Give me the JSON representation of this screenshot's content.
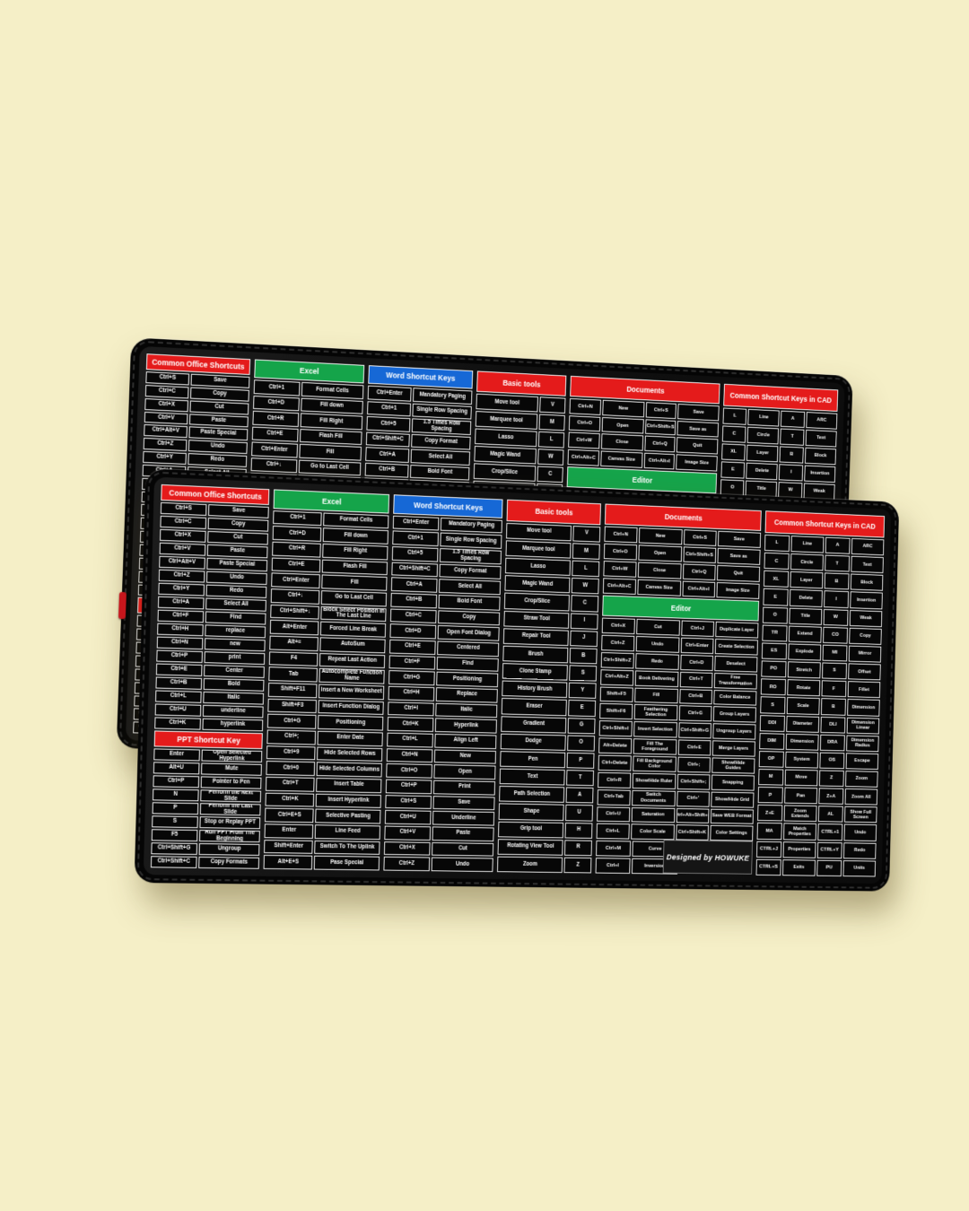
{
  "scene": {
    "background_color": "#f5efc7",
    "mat_color": "#101010",
    "badge_text": "Designed by HOWUKE"
  },
  "colors": {
    "red": "#e41b1b",
    "green": "#15a44a",
    "blue": "#1668d6"
  },
  "mat": {
    "columns": [
      {
        "id": "office",
        "flex": 1.48,
        "sections": [
          {
            "header": "Common Office Shortcuts",
            "color": "red",
            "layout": "kv",
            "rows": [
              [
                "Ctrl+S",
                "Save"
              ],
              [
                "Ctrl+C",
                "Copy"
              ],
              [
                "Ctrl+X",
                "Cut"
              ],
              [
                "Ctrl+V",
                "Paste"
              ],
              [
                "Ctrl+Alt+V",
                "Paste Special"
              ],
              [
                "Ctrl+Z",
                "Undo"
              ],
              [
                "Ctrl+Y",
                "Redo"
              ],
              [
                "Ctrl+A",
                "Select All"
              ],
              [
                "Ctrl+F",
                "Find"
              ],
              [
                "Ctrl+H",
                "replace"
              ],
              [
                "Ctrl+N",
                "new"
              ],
              [
                "Ctrl+P",
                "print"
              ],
              [
                "Ctrl+E",
                "Center"
              ],
              [
                "Ctrl+B",
                "Bold"
              ],
              [
                "Ctrl+L",
                "Italic"
              ],
              [
                "Ctrl+U",
                "underline"
              ],
              [
                "Ctrl+K",
                "hyperlink"
              ]
            ]
          },
          {
            "header": "PPT Shortcut Key",
            "color": "red",
            "layout": "kv",
            "rows": [
              [
                "Enter",
                "Open Selected Hyperlink"
              ],
              [
                "Alt+U",
                "Mute"
              ],
              [
                "Ctrl+P",
                "Pointer to Pen"
              ],
              [
                "N",
                "Perform the Next Slide"
              ],
              [
                "P",
                "Perform the Last Slide"
              ],
              [
                "S",
                "Stop or Replay PPT"
              ],
              [
                "F5",
                "Run PPT From The Beginning"
              ],
              [
                "Ctrl+Shift+G",
                "Ungroup"
              ],
              [
                "Ctrl+Shift+C",
                "Copy Formats"
              ]
            ]
          }
        ]
      },
      {
        "id": "excel",
        "flex": 1.6,
        "sections": [
          {
            "header": "Excel",
            "color": "green",
            "layout": "kv",
            "rows": [
              [
                "Ctrl+1",
                "Format Cells"
              ],
              [
                "Ctrl+D",
                "Fill down"
              ],
              [
                "Ctrl+R",
                "Fill Right"
              ],
              [
                "Ctrl+E",
                "Flash Fill"
              ],
              [
                "Ctrl+Enter",
                "Fill"
              ],
              [
                "Ctrl+↓",
                "Go to Last Cell"
              ],
              [
                "Ctrl+Shift+↓",
                "Block Select Position In The Last Line"
              ],
              [
                "Alt+Enter",
                "Forced Line Break"
              ],
              [
                "Alt+=",
                "AutoSum"
              ],
              [
                "F4",
                "Repeat Last Action"
              ],
              [
                "Tab",
                "Autocomplete Function Name"
              ],
              [
                "Shift+F11",
                "Insert a New Worksheet"
              ],
              [
                "Shift+F3",
                "Insert Function Dialog"
              ],
              [
                "Ctrl+G",
                "Positioning"
              ],
              [
                "Ctrl+;",
                "Enter Date"
              ],
              [
                "Ctrl+9",
                "Hide Selected Rows"
              ],
              [
                "Ctrl+0",
                "Hide Selected Columns"
              ],
              [
                "Ctrl+T",
                "Insert Table"
              ],
              [
                "Ctrl+K",
                "Insert Hyperlink"
              ],
              [
                "Ctrl+E+S",
                "Selective Pasting"
              ],
              [
                "Enter",
                "Line Feed"
              ],
              [
                "Shift+Enter",
                "Switch To The Uplink"
              ],
              [
                "Alt+E+S",
                "Pase Special"
              ]
            ]
          }
        ]
      },
      {
        "id": "word",
        "flex": 1.55,
        "sections": [
          {
            "header": "Word Shortcut Keys",
            "color": "blue",
            "layout": "kv",
            "rows": [
              [
                "Ctrl+Enter",
                "Mandatory Paging"
              ],
              [
                "Ctrl+1",
                "Single Row Spacing"
              ],
              [
                "Ctrl+5",
                "1.5 Times Row Spacing"
              ],
              [
                "Ctrl+Shift+C",
                "Copy Format"
              ],
              [
                "Ctrl+A",
                "Select All"
              ],
              [
                "Ctrl+B",
                "Bold Font"
              ],
              [
                "Ctrl+C",
                "Copy"
              ],
              [
                "Ctrl+D",
                "Open Font Dialog"
              ],
              [
                "Ctrl+E",
                "Centered"
              ],
              [
                "Ctrl+F",
                "Find"
              ],
              [
                "Ctrl+G",
                "Positioning"
              ],
              [
                "Ctrl+H",
                "Replace"
              ],
              [
                "Ctrl+I",
                "Italic"
              ],
              [
                "Ctrl+K",
                "Hyperlink"
              ],
              [
                "Ctrl+L",
                "Align Left"
              ],
              [
                "Ctrl+N",
                "New"
              ],
              [
                "Ctrl+O",
                "Open"
              ],
              [
                "Ctrl+P",
                "Print"
              ],
              [
                "Ctrl+S",
                "Save"
              ],
              [
                "Ctrl+U",
                "Underline"
              ],
              [
                "Ctrl+V",
                "Paste"
              ],
              [
                "Ctrl+X",
                "Cut"
              ],
              [
                "Ctrl+Z",
                "Undo"
              ]
            ]
          }
        ]
      },
      {
        "id": "basic-tools",
        "flex": 1.35,
        "sections": [
          {
            "header": "Basic tools",
            "color": "red",
            "layout": "vk",
            "rows": [
              [
                "Move tool",
                "V"
              ],
              [
                "Marquee tool",
                "M"
              ],
              [
                "Lasso",
                "L"
              ],
              [
                "Magic Wand",
                "W"
              ],
              [
                "Crop/Slice",
                "C"
              ],
              [
                "Straw Tool",
                "I"
              ],
              [
                "Repair Tool",
                "J"
              ],
              [
                "Brush",
                "B"
              ],
              [
                "Clone Stamp",
                "S"
              ],
              [
                "History Brush",
                "Y"
              ],
              [
                "Eraser",
                "E"
              ],
              [
                "Gradient",
                "G"
              ],
              [
                "Dodge",
                "O"
              ],
              [
                "Pen",
                "P"
              ],
              [
                "Text",
                "T"
              ],
              [
                "Path Selection",
                "A"
              ],
              [
                "Shape",
                "U"
              ],
              [
                "Grip tool",
                "H"
              ],
              [
                "Rotating View Tool",
                "R"
              ],
              [
                "Zoom",
                "Z"
              ]
            ]
          }
        ]
      },
      {
        "id": "documents",
        "flex": 2.3,
        "badge": true,
        "sections": [
          {
            "header": "Documents",
            "color": "red",
            "layout": "kvkv",
            "rows": [
              [
                "Ctrl+N",
                "New",
                "Ctrl+S",
                "Save"
              ],
              [
                "Ctrl+O",
                "Open",
                "Ctrl+Shift+S",
                "Save as"
              ],
              [
                "Ctrl+W",
                "Close",
                "Ctrl+Q",
                "Quit"
              ],
              [
                "Ctrl+Alt+C",
                "Canvas Size",
                "Ctrl+Alt+I",
                "Image Size"
              ]
            ]
          },
          {
            "header": "Editor",
            "color": "green",
            "layout": "kvkv",
            "rows": [
              [
                "Ctrl+X",
                "Cut",
                "Ctrl+J",
                "Duplicate Layer"
              ],
              [
                "Ctrl+Z",
                "Undo",
                "Ctrl+Enter",
                "Create Selection"
              ],
              [
                "Ctrl+Shift+Z",
                "Redo",
                "Ctrl+D",
                "Deselect"
              ],
              [
                "Ctrl+Alt+Z",
                "Book Delivering",
                "Ctrl+T",
                "Free Transformation"
              ],
              [
                "Shift+F5",
                "Fill",
                "Ctrl+B",
                "Color Balance"
              ],
              [
                "Shift+F6",
                "Feathering Selection",
                "Ctrl+G",
                "Group Layers"
              ],
              [
                "Ctrl+Shift+I",
                "Invert Selection",
                "Ctrl+Shift+G",
                "Ungroup Layers"
              ],
              [
                "Alt+Delete",
                "Fill The Foreground",
                "Ctrl+E",
                "Merge Layers"
              ],
              [
                "Ctrl+Delete",
                "Fill Background Color",
                "Ctrl+;",
                "Show/Hide Guides"
              ],
              [
                "Ctrl+R",
                "Show/Hide Ruler",
                "Ctrl+Shift+;",
                "Snapping"
              ],
              [
                "Ctrl+Tab",
                "Switch Documents",
                "Ctrl+'",
                "Show/Hide Grid"
              ],
              [
                "Ctrl+U",
                "Saturation",
                "Ctrl+Alt+Shift+S",
                "Save WEB Format"
              ],
              [
                "Ctrl+L",
                "Color Scale",
                "Ctrl+Shift+K",
                "Color Settings"
              ],
              [
                "Ctrl+M",
                "Curve"
              ],
              [
                "Ctrl+I",
                "Inversion"
              ]
            ]
          }
        ]
      },
      {
        "id": "cad",
        "flex": 1.8,
        "sections": [
          {
            "header": "Common Shortcut Keys in CAD",
            "color": "red",
            "layout": "kvkv",
            "rows": [
              [
                "L",
                "Line",
                "A",
                "ARC"
              ],
              [
                "C",
                "Circle",
                "T",
                "Text"
              ],
              [
                "XL",
                "Layer",
                "B",
                "Block"
              ],
              [
                "E",
                "Delete",
                "I",
                "Insertion"
              ],
              [
                "O",
                "Title",
                "W",
                "Weak"
              ],
              [
                "TR",
                "Extend",
                "CO",
                "Copy"
              ],
              [
                "ES",
                "Explode",
                "MI",
                "Mirror"
              ],
              [
                "PO",
                "Stretch",
                "S",
                "Offset"
              ],
              [
                "RO",
                "Rotate",
                "F",
                "Fillet"
              ],
              [
                "S",
                "Scale",
                "B",
                "Dimension"
              ],
              [
                "DDI",
                "Diameter",
                "DLI",
                "Dimension Linear"
              ],
              [
                "DIM",
                "Dimension",
                "DRA",
                "Dimension Radius"
              ],
              [
                "OP",
                "System",
                "OS",
                "Escape"
              ],
              [
                "M",
                "Move",
                "Z",
                "Zoom"
              ],
              [
                "P",
                "Pan",
                "Z+A",
                "Zoom All"
              ],
              [
                "Z+E",
                "Zoom Extends",
                "AL",
                "Show Full Screen"
              ],
              [
                "MA",
                "Match Properties",
                "CTRL+1",
                "Undo"
              ],
              [
                "CTRL+J",
                "Properties",
                "CTRL+Y",
                "Redo"
              ],
              [
                "CTRL+S",
                "Exits",
                "PU",
                "Units"
              ]
            ]
          }
        ]
      }
    ]
  }
}
